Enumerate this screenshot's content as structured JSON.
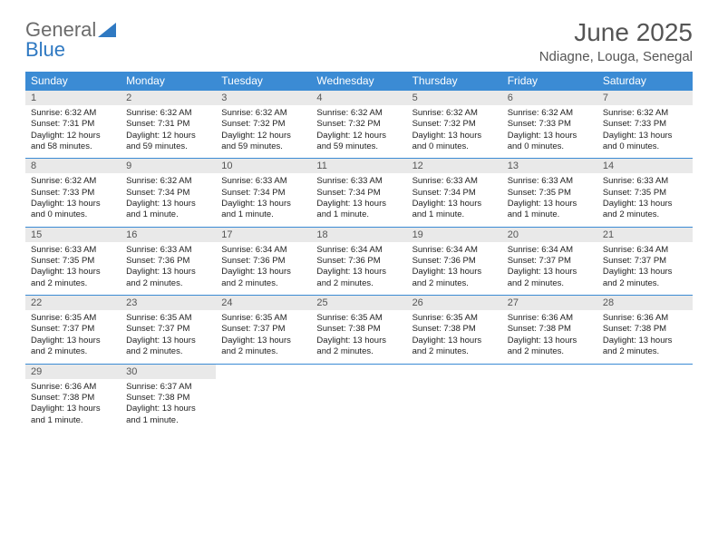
{
  "logo": {
    "text_gray": "General",
    "text_blue": "Blue"
  },
  "title": "June 2025",
  "location": "Ndiagne, Louga, Senegal",
  "colors": {
    "header_bg": "#3b8bd4",
    "header_text": "#ffffff",
    "daynum_bg": "#e9e9e9",
    "border": "#3b8bd4",
    "logo_gray": "#6b6b6b",
    "logo_blue": "#2f79c2"
  },
  "weekdays": [
    "Sunday",
    "Monday",
    "Tuesday",
    "Wednesday",
    "Thursday",
    "Friday",
    "Saturday"
  ],
  "days": [
    {
      "n": 1,
      "sr": "6:32 AM",
      "ss": "7:31 PM",
      "dl": "12 hours and 58 minutes."
    },
    {
      "n": 2,
      "sr": "6:32 AM",
      "ss": "7:31 PM",
      "dl": "12 hours and 59 minutes."
    },
    {
      "n": 3,
      "sr": "6:32 AM",
      "ss": "7:32 PM",
      "dl": "12 hours and 59 minutes."
    },
    {
      "n": 4,
      "sr": "6:32 AM",
      "ss": "7:32 PM",
      "dl": "12 hours and 59 minutes."
    },
    {
      "n": 5,
      "sr": "6:32 AM",
      "ss": "7:32 PM",
      "dl": "13 hours and 0 minutes."
    },
    {
      "n": 6,
      "sr": "6:32 AM",
      "ss": "7:33 PM",
      "dl": "13 hours and 0 minutes."
    },
    {
      "n": 7,
      "sr": "6:32 AM",
      "ss": "7:33 PM",
      "dl": "13 hours and 0 minutes."
    },
    {
      "n": 8,
      "sr": "6:32 AM",
      "ss": "7:33 PM",
      "dl": "13 hours and 0 minutes."
    },
    {
      "n": 9,
      "sr": "6:32 AM",
      "ss": "7:34 PM",
      "dl": "13 hours and 1 minute."
    },
    {
      "n": 10,
      "sr": "6:33 AM",
      "ss": "7:34 PM",
      "dl": "13 hours and 1 minute."
    },
    {
      "n": 11,
      "sr": "6:33 AM",
      "ss": "7:34 PM",
      "dl": "13 hours and 1 minute."
    },
    {
      "n": 12,
      "sr": "6:33 AM",
      "ss": "7:34 PM",
      "dl": "13 hours and 1 minute."
    },
    {
      "n": 13,
      "sr": "6:33 AM",
      "ss": "7:35 PM",
      "dl": "13 hours and 1 minute."
    },
    {
      "n": 14,
      "sr": "6:33 AM",
      "ss": "7:35 PM",
      "dl": "13 hours and 2 minutes."
    },
    {
      "n": 15,
      "sr": "6:33 AM",
      "ss": "7:35 PM",
      "dl": "13 hours and 2 minutes."
    },
    {
      "n": 16,
      "sr": "6:33 AM",
      "ss": "7:36 PM",
      "dl": "13 hours and 2 minutes."
    },
    {
      "n": 17,
      "sr": "6:34 AM",
      "ss": "7:36 PM",
      "dl": "13 hours and 2 minutes."
    },
    {
      "n": 18,
      "sr": "6:34 AM",
      "ss": "7:36 PM",
      "dl": "13 hours and 2 minutes."
    },
    {
      "n": 19,
      "sr": "6:34 AM",
      "ss": "7:36 PM",
      "dl": "13 hours and 2 minutes."
    },
    {
      "n": 20,
      "sr": "6:34 AM",
      "ss": "7:37 PM",
      "dl": "13 hours and 2 minutes."
    },
    {
      "n": 21,
      "sr": "6:34 AM",
      "ss": "7:37 PM",
      "dl": "13 hours and 2 minutes."
    },
    {
      "n": 22,
      "sr": "6:35 AM",
      "ss": "7:37 PM",
      "dl": "13 hours and 2 minutes."
    },
    {
      "n": 23,
      "sr": "6:35 AM",
      "ss": "7:37 PM",
      "dl": "13 hours and 2 minutes."
    },
    {
      "n": 24,
      "sr": "6:35 AM",
      "ss": "7:37 PM",
      "dl": "13 hours and 2 minutes."
    },
    {
      "n": 25,
      "sr": "6:35 AM",
      "ss": "7:38 PM",
      "dl": "13 hours and 2 minutes."
    },
    {
      "n": 26,
      "sr": "6:35 AM",
      "ss": "7:38 PM",
      "dl": "13 hours and 2 minutes."
    },
    {
      "n": 27,
      "sr": "6:36 AM",
      "ss": "7:38 PM",
      "dl": "13 hours and 2 minutes."
    },
    {
      "n": 28,
      "sr": "6:36 AM",
      "ss": "7:38 PM",
      "dl": "13 hours and 2 minutes."
    },
    {
      "n": 29,
      "sr": "6:36 AM",
      "ss": "7:38 PM",
      "dl": "13 hours and 1 minute."
    },
    {
      "n": 30,
      "sr": "6:37 AM",
      "ss": "7:38 PM",
      "dl": "13 hours and 1 minute."
    }
  ],
  "labels": {
    "sunrise": "Sunrise:",
    "sunset": "Sunset:",
    "daylight": "Daylight:"
  }
}
